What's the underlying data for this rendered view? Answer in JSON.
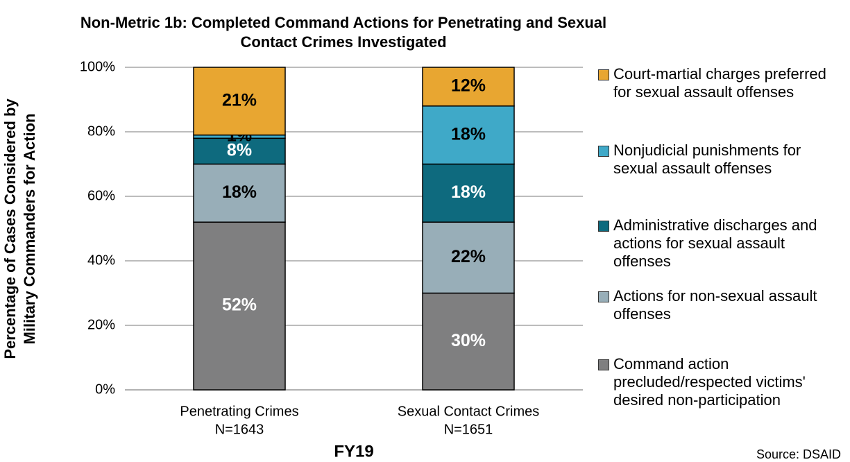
{
  "chart_data": {
    "type": "stacked_bar",
    "title": [
      "Non-Metric 1b: Completed Command Actions for Penetrating and Sexual",
      "Contact Crimes Investigated"
    ],
    "ylabel": [
      "Percentage of Cases Considered by",
      "Military Commanders for Action"
    ],
    "xlabel": "FY19",
    "source": "Source: DSAID",
    "categories": [
      "Penetrating Crimes",
      "Sexual Contact Crimes"
    ],
    "category_notes": [
      "N=1643",
      "N=1651"
    ],
    "series": [
      {
        "name": "Command action precluded/respected victims' desired non-participation",
        "color": "#7f7f80",
        "label_color": "#ffffff",
        "values": [
          52,
          30
        ],
        "value_labels": [
          "52%",
          "30%"
        ]
      },
      {
        "name": "Actions for non-sexual assault offenses",
        "color": "#98aeb8",
        "label_color": "#000000",
        "values": [
          18,
          22
        ],
        "value_labels": [
          "18%",
          "22%"
        ]
      },
      {
        "name": "Administrative discharges and actions for sexual assault offenses",
        "color": "#0e6a7e",
        "label_color": "#ffffff",
        "values": [
          8,
          18
        ],
        "value_labels": [
          "8%",
          "18%"
        ]
      },
      {
        "name": "Nonjudicial punishments for sexual assault offenses",
        "color": "#3fa9c8",
        "label_color": "#000000",
        "values": [
          1,
          18
        ],
        "value_labels": [
          "1%",
          "18%"
        ]
      },
      {
        "name": "Court-martial charges preferred for sexual assault offenses",
        "color": "#e8a631",
        "label_color": "#000000",
        "values": [
          21,
          12
        ],
        "value_labels": [
          "21%",
          "12%"
        ]
      }
    ],
    "ylim": [
      0,
      100
    ],
    "yticks": [
      {
        "value": 0,
        "label": "0%"
      },
      {
        "value": 20,
        "label": "20%"
      },
      {
        "value": 40,
        "label": "40%"
      },
      {
        "value": 60,
        "label": "60%"
      },
      {
        "value": 80,
        "label": "80%"
      },
      {
        "value": 100,
        "label": "100%"
      }
    ],
    "grid": true,
    "legend": "right"
  }
}
